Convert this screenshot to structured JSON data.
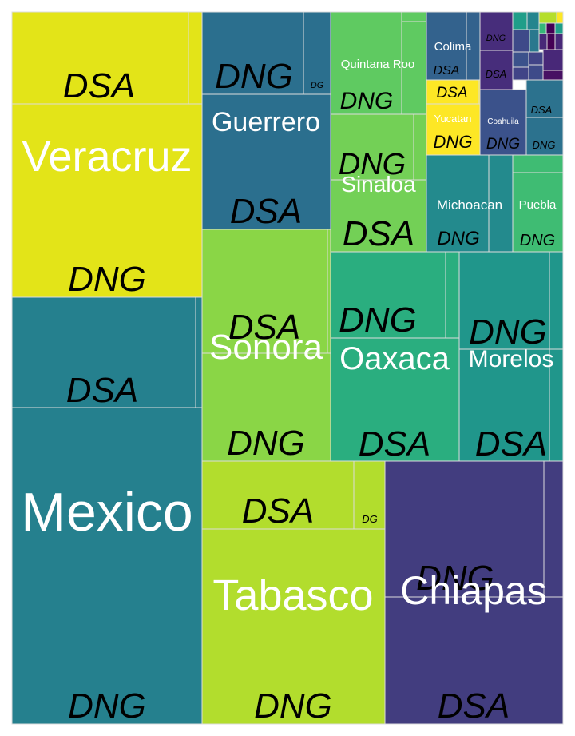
{
  "chart_data": {
    "type": "treemap",
    "title": "",
    "states": [
      {
        "name": "Veracruz",
        "color": "#e3e418",
        "children": [
          {
            "name": "DSA",
            "color": "#e3e418"
          },
          {
            "name": "DNG",
            "color": "#e3e418"
          }
        ]
      },
      {
        "name": "Mexico",
        "color": "#25808e",
        "children": [
          {
            "name": "DSA",
            "color": "#25808e"
          },
          {
            "name": "DNG",
            "color": "#25808e"
          }
        ]
      },
      {
        "name": "Guerrero",
        "color": "#2b6f8e",
        "children": [
          {
            "name": "DNG",
            "color": "#2b6f8e"
          },
          {
            "name": "DG",
            "color": "#2b6f8e"
          },
          {
            "name": "DSA",
            "color": "#2b6f8e"
          }
        ]
      },
      {
        "name": "Sonora",
        "color": "#8ad646",
        "children": [
          {
            "name": "DSA",
            "color": "#8ad646"
          },
          {
            "name": "DNG",
            "color": "#8ad646"
          }
        ]
      },
      {
        "name": "Tabasco",
        "color": "#b2dd2d",
        "children": [
          {
            "name": "DSA",
            "color": "#b2dd2d"
          },
          {
            "name": "DG",
            "color": "#b2dd2d"
          },
          {
            "name": "DNG",
            "color": "#b2dd2d"
          }
        ]
      },
      {
        "name": "Chiapas",
        "color": "#423d7f",
        "children": [
          {
            "name": "DNG",
            "color": "#423d7f"
          },
          {
            "name": "DSA",
            "color": "#423d7f"
          }
        ]
      },
      {
        "name": "Quintana Roo",
        "color": "#5fca61",
        "children": [
          {
            "name": "DNG",
            "color": "#5fca61"
          }
        ]
      },
      {
        "name": "Sinaloa",
        "color": "#73d056",
        "children": [
          {
            "name": "DNG",
            "color": "#73d056"
          },
          {
            "name": "DSA",
            "color": "#73d056"
          }
        ]
      },
      {
        "name": "Oaxaca",
        "color": "#2aae7f",
        "children": [
          {
            "name": "DNG",
            "color": "#2aae7f"
          },
          {
            "name": "DSA",
            "color": "#2aae7f"
          }
        ]
      },
      {
        "name": "Morelos",
        "color": "#20968b",
        "children": [
          {
            "name": "DNG",
            "color": "#20968b"
          },
          {
            "name": "DSA",
            "color": "#20968b"
          }
        ]
      },
      {
        "name": "Colima",
        "color": "#33628d",
        "children": [
          {
            "name": "DSA",
            "color": "#33628d"
          }
        ]
      },
      {
        "name": "Yucatan",
        "color": "#fde725",
        "children": [
          {
            "name": "DSA",
            "color": "#fde725"
          },
          {
            "name": "DNG",
            "color": "#fde725"
          }
        ]
      },
      {
        "name": "Coahuila",
        "color": "#3b528b",
        "children": [
          {
            "name": "DNG",
            "color": "#3b528b"
          }
        ]
      },
      {
        "name": "Michoacan",
        "color": "#238a8d",
        "children": [
          {
            "name": "DNG",
            "color": "#238a8d"
          }
        ]
      },
      {
        "name": "Puebla",
        "color": "#3fbc73",
        "children": [
          {
            "name": "DNG",
            "color": "#3fbc73"
          }
        ]
      }
    ],
    "unlabeled_states": [
      {
        "color": "#472d7b",
        "children": [
          {
            "name": "DNG"
          },
          {
            "name": "DSA"
          }
        ]
      },
      {
        "color": "#2c728e",
        "children": [
          {
            "name": "DSA"
          },
          {
            "name": "DNG"
          }
        ]
      }
    ]
  }
}
